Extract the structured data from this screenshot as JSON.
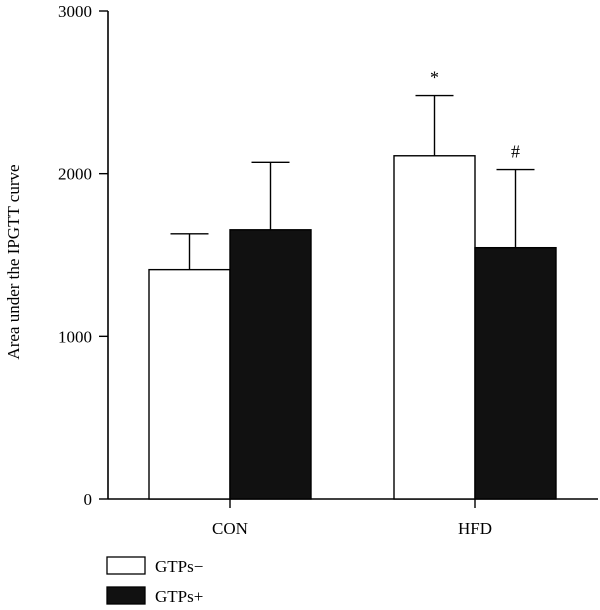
{
  "chart_data": {
    "type": "bar",
    "categories": [
      "CON",
      "HFD"
    ],
    "series": [
      {
        "name": "GTPs−",
        "values": [
          1410,
          2110
        ],
        "errors": [
          220,
          370
        ],
        "color": "#ffffff",
        "annotations": [
          "",
          "*"
        ]
      },
      {
        "name": "GTPs+",
        "values": [
          1655,
          1545
        ],
        "errors": [
          415,
          480
        ],
        "color": "#111111",
        "annotations": [
          "",
          "#"
        ]
      }
    ],
    "ylabel": "Area under the IPGTT curve",
    "xlabel": "",
    "ylim": [
      0,
      3000
    ],
    "yticks": [
      0,
      1000,
      2000,
      3000
    ],
    "legend_position": "bottom-left",
    "grid": false
  }
}
